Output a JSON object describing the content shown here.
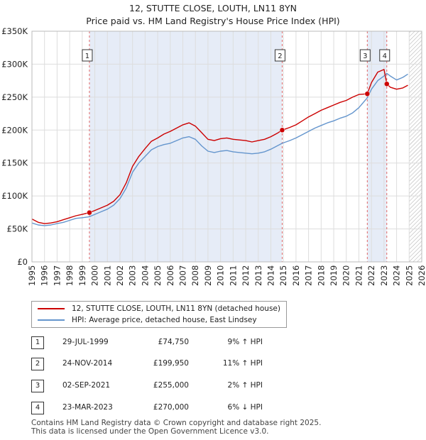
{
  "title_line1": "12, STUTTE CLOSE, LOUTH, LN11 8YN",
  "title_line2": "Price paid vs. HM Land Registry's House Price Index (HPI)",
  "chart_data": {
    "type": "line",
    "xlim": [
      1995,
      2026
    ],
    "ylim": [
      0,
      350000
    ],
    "x_ticks": [
      1995,
      1996,
      1997,
      1998,
      1999,
      2000,
      2001,
      2002,
      2003,
      2004,
      2005,
      2006,
      2007,
      2008,
      2009,
      2010,
      2011,
      2012,
      2013,
      2014,
      2015,
      2016,
      2017,
      2018,
      2019,
      2020,
      2021,
      2022,
      2023,
      2024,
      2025,
      2026
    ],
    "y_ticks": [
      {
        "value": 0,
        "label": "£0"
      },
      {
        "value": 50000,
        "label": "£50K"
      },
      {
        "value": 100000,
        "label": "£100K"
      },
      {
        "value": 150000,
        "label": "£150K"
      },
      {
        "value": 200000,
        "label": "£200K"
      },
      {
        "value": 250000,
        "label": "£250K"
      },
      {
        "value": 300000,
        "label": "£300K"
      },
      {
        "value": 350000,
        "label": "£350K"
      }
    ],
    "shaded_regions": [
      [
        1999.57,
        2014.9
      ],
      [
        2021.67,
        2023.22
      ]
    ],
    "future_hatch_from": 2025.0,
    "series": [
      {
        "name": "12, STUTTE CLOSE, LOUTH, LN11 8YN (detached house)",
        "color": "#cc0000",
        "points": [
          [
            1995.0,
            65000
          ],
          [
            1995.5,
            60000
          ],
          [
            1996.0,
            58000
          ],
          [
            1996.5,
            59000
          ],
          [
            1997.0,
            61000
          ],
          [
            1997.5,
            64000
          ],
          [
            1998.0,
            67000
          ],
          [
            1998.5,
            70000
          ],
          [
            1999.0,
            72000
          ],
          [
            1999.57,
            74750
          ],
          [
            2000.0,
            78000
          ],
          [
            2000.5,
            82000
          ],
          [
            2001.0,
            86000
          ],
          [
            2001.5,
            92000
          ],
          [
            2002.0,
            102000
          ],
          [
            2002.5,
            120000
          ],
          [
            2003.0,
            145000
          ],
          [
            2003.5,
            160000
          ],
          [
            2004.0,
            172000
          ],
          [
            2004.5,
            183000
          ],
          [
            2005.0,
            188000
          ],
          [
            2005.5,
            194000
          ],
          [
            2006.0,
            198000
          ],
          [
            2006.5,
            203000
          ],
          [
            2007.0,
            208000
          ],
          [
            2007.5,
            211000
          ],
          [
            2008.0,
            206000
          ],
          [
            2008.5,
            196000
          ],
          [
            2009.0,
            186000
          ],
          [
            2009.5,
            184000
          ],
          [
            2010.0,
            187000
          ],
          [
            2010.5,
            188000
          ],
          [
            2011.0,
            186000
          ],
          [
            2011.5,
            185000
          ],
          [
            2012.0,
            184000
          ],
          [
            2012.5,
            182000
          ],
          [
            2013.0,
            184000
          ],
          [
            2013.5,
            186000
          ],
          [
            2014.0,
            190000
          ],
          [
            2014.5,
            195000
          ],
          [
            2014.9,
            199950
          ],
          [
            2015.5,
            204000
          ],
          [
            2016.0,
            208000
          ],
          [
            2016.5,
            214000
          ],
          [
            2017.0,
            220000
          ],
          [
            2017.5,
            225000
          ],
          [
            2018.0,
            230000
          ],
          [
            2018.5,
            234000
          ],
          [
            2019.0,
            238000
          ],
          [
            2019.5,
            242000
          ],
          [
            2020.0,
            245000
          ],
          [
            2020.5,
            250000
          ],
          [
            2021.0,
            254000
          ],
          [
            2021.67,
            255000
          ],
          [
            2022.0,
            272000
          ],
          [
            2022.5,
            288000
          ],
          [
            2023.0,
            292000
          ],
          [
            2023.22,
            270000
          ],
          [
            2023.5,
            265000
          ],
          [
            2024.0,
            262000
          ],
          [
            2024.5,
            264000
          ],
          [
            2024.9,
            268000
          ]
        ]
      },
      {
        "name": "HPI: Average price, detached house, East Lindsey",
        "color": "#6495cd",
        "points": [
          [
            1995.0,
            59000
          ],
          [
            1995.5,
            56000
          ],
          [
            1996.0,
            55000
          ],
          [
            1996.5,
            56000
          ],
          [
            1997.0,
            58000
          ],
          [
            1997.5,
            60000
          ],
          [
            1998.0,
            63000
          ],
          [
            1998.5,
            66000
          ],
          [
            1999.0,
            67000
          ],
          [
            1999.57,
            68500
          ],
          [
            2000.0,
            72000
          ],
          [
            2000.5,
            76000
          ],
          [
            2001.0,
            80000
          ],
          [
            2001.5,
            86000
          ],
          [
            2002.0,
            96000
          ],
          [
            2002.5,
            112000
          ],
          [
            2003.0,
            136000
          ],
          [
            2003.5,
            150000
          ],
          [
            2004.0,
            160000
          ],
          [
            2004.5,
            170000
          ],
          [
            2005.0,
            175000
          ],
          [
            2005.5,
            178000
          ],
          [
            2006.0,
            180000
          ],
          [
            2006.5,
            184000
          ],
          [
            2007.0,
            188000
          ],
          [
            2007.5,
            190000
          ],
          [
            2008.0,
            186000
          ],
          [
            2008.5,
            176000
          ],
          [
            2009.0,
            168000
          ],
          [
            2009.5,
            166000
          ],
          [
            2010.0,
            168000
          ],
          [
            2010.5,
            169000
          ],
          [
            2011.0,
            167000
          ],
          [
            2011.5,
            166000
          ],
          [
            2012.0,
            165000
          ],
          [
            2012.5,
            164000
          ],
          [
            2013.0,
            165000
          ],
          [
            2013.5,
            167000
          ],
          [
            2014.0,
            171000
          ],
          [
            2014.5,
            176000
          ],
          [
            2014.9,
            180000
          ],
          [
            2015.5,
            184000
          ],
          [
            2016.0,
            188000
          ],
          [
            2016.5,
            193000
          ],
          [
            2017.0,
            198000
          ],
          [
            2017.5,
            203000
          ],
          [
            2018.0,
            207000
          ],
          [
            2018.5,
            211000
          ],
          [
            2019.0,
            214000
          ],
          [
            2019.5,
            218000
          ],
          [
            2020.0,
            221000
          ],
          [
            2020.5,
            226000
          ],
          [
            2021.0,
            234000
          ],
          [
            2021.67,
            249000
          ],
          [
            2022.0,
            262000
          ],
          [
            2022.5,
            275000
          ],
          [
            2023.0,
            282000
          ],
          [
            2023.22,
            286000
          ],
          [
            2023.5,
            282000
          ],
          [
            2024.0,
            276000
          ],
          [
            2024.5,
            280000
          ],
          [
            2024.9,
            285000
          ]
        ]
      }
    ],
    "sales": [
      {
        "id": "1",
        "x": 1999.57,
        "price": 74750
      },
      {
        "id": "2",
        "x": 2014.9,
        "price": 199950
      },
      {
        "id": "3",
        "x": 2021.67,
        "price": 255000
      },
      {
        "id": "4",
        "x": 2023.22,
        "price": 270000
      }
    ]
  },
  "legend": {
    "property": "12, STUTTE CLOSE, LOUTH, LN11 8YN (detached house)",
    "hpi": "HPI: Average price, detached house, East Lindsey"
  },
  "transactions": [
    {
      "id": "1",
      "date": "29-JUL-1999",
      "price": "£74,750",
      "delta": "9% ↑ HPI"
    },
    {
      "id": "2",
      "date": "24-NOV-2014",
      "price": "£199,950",
      "delta": "11% ↑ HPI"
    },
    {
      "id": "3",
      "date": "02-SEP-2021",
      "price": "£255,000",
      "delta": "2% ↑ HPI"
    },
    {
      "id": "4",
      "date": "23-MAR-2023",
      "price": "£270,000",
      "delta": "6% ↓ HPI"
    }
  ],
  "footer": {
    "line1": "Contains HM Land Registry data © Crown copyright and database right 2025.",
    "line2": "This data is licensed under the Open Government Licence v3.0."
  }
}
